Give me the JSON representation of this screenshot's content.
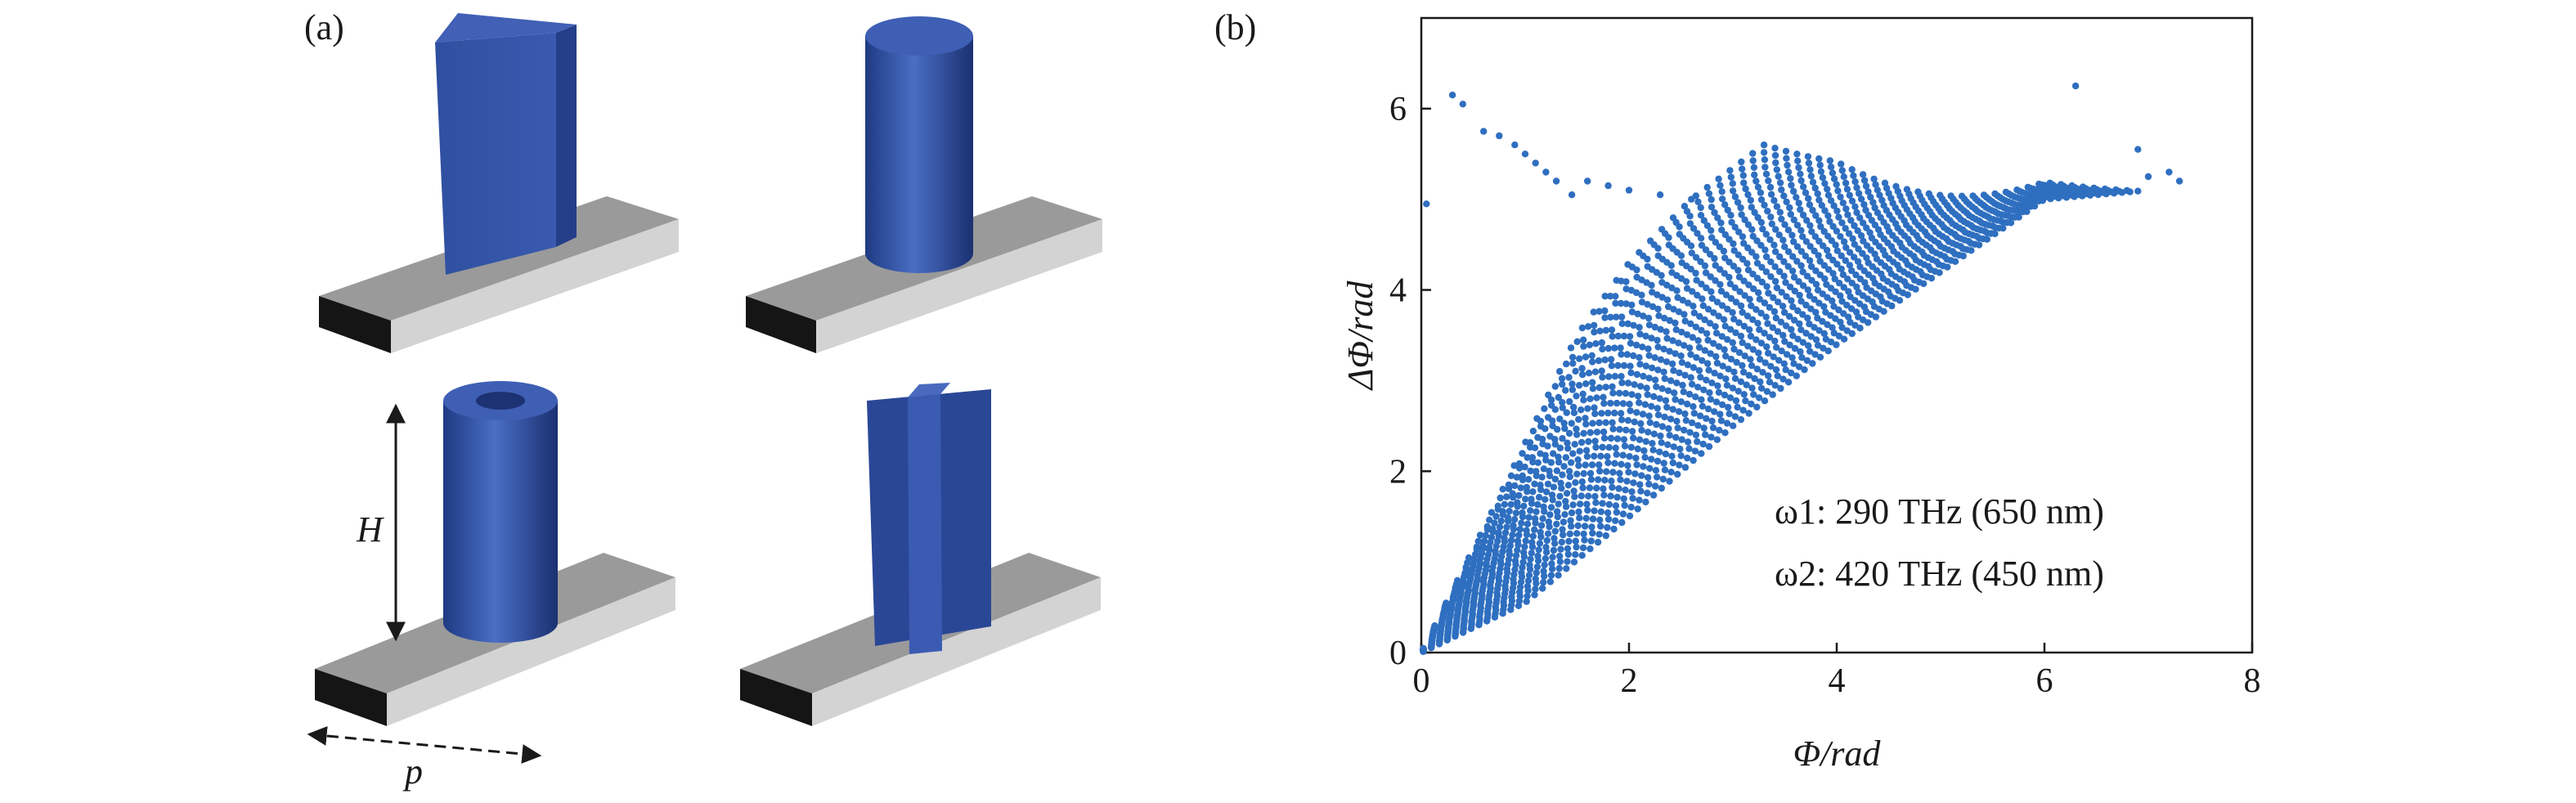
{
  "panels": {
    "a_label": "(a)",
    "b_label": "(b)"
  },
  "annotations": {
    "height_label": "H",
    "period_label": "p"
  },
  "colors": {
    "pillar": "#2f4fa0",
    "substrate_top": "#9a9a9a",
    "substrate_side": "#cfcfcf",
    "substrate_front": "#151515",
    "marker": "#2f6fc0"
  },
  "chart_data": {
    "type": "scatter",
    "xlabel": "Φ/rad",
    "ylabel": "ΔΦ/rad",
    "xlim": [
      0,
      8
    ],
    "ylim": [
      0,
      7
    ],
    "xticks": [
      0,
      2,
      4,
      6,
      8
    ],
    "yticks": [
      0,
      2,
      4,
      6
    ],
    "grid": false,
    "legend": "none",
    "annotations": [
      "ω1: 290 THz (650 nm)",
      "ω2: 420 THz (450 nm)"
    ],
    "lower_boundary": {
      "x": [
        0,
        1,
        2,
        3,
        4,
        5,
        6,
        7,
        7.3
      ],
      "y": [
        0,
        0.55,
        1.5,
        2.5,
        3.4,
        4.2,
        5.0,
        5.1,
        5.2
      ]
    },
    "upper_boundary": {
      "x": [
        0,
        0.7,
        1.5,
        2.0,
        2.6,
        3.3,
        4.0,
        5.0,
        6.0,
        7.0
      ],
      "y": [
        0,
        1.6,
        3.5,
        4.3,
        5.0,
        5.6,
        5.9,
        5.8,
        5.75,
        5.65
      ]
    },
    "series": [
      {
        "values": [
          [
            0.05,
            4.95
          ],
          [
            0.3,
            6.15
          ],
          [
            0.4,
            6.05
          ],
          [
            0.6,
            5.75
          ],
          [
            0.75,
            5.7
          ],
          [
            0.9,
            5.6
          ],
          [
            1.0,
            5.5
          ],
          [
            1.1,
            5.4
          ],
          [
            1.2,
            5.3
          ],
          [
            1.3,
            5.2
          ],
          [
            1.45,
            5.05
          ],
          [
            1.6,
            5.2
          ],
          [
            1.8,
            5.15
          ],
          [
            2.0,
            5.1
          ],
          [
            2.3,
            5.05
          ],
          [
            2.6,
            5.0
          ],
          [
            6.3,
            6.25
          ],
          [
            6.9,
            5.55
          ],
          [
            7.0,
            5.25
          ],
          [
            7.2,
            5.3
          ],
          [
            7.3,
            5.2
          ]
        ]
      }
    ]
  }
}
